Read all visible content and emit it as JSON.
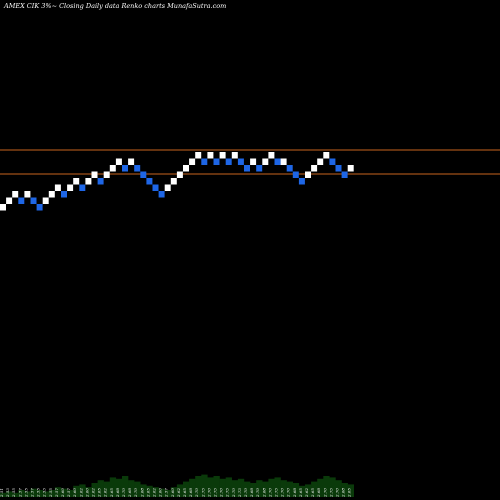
{
  "header": {
    "title": "AMEX  CIK 3%~  Closing Daily data  Renko  charts MunafaSutra.com"
  },
  "chart_data": {
    "type": "renko",
    "title": "AMEX  CIK 3%~  Closing Daily data  Renko  charts MunafaSutra.com",
    "xlabel": "",
    "ylabel": "",
    "brick_colors": {
      "up": "#ffffff",
      "down": "#1e66e6"
    },
    "line_color": "#c8641e",
    "volume_color": "#0a3a0a",
    "horizontal_levels": [
      2.93,
      2.87
    ],
    "bricks": [
      {
        "dir": "up",
        "level": 0
      },
      {
        "dir": "up",
        "level": 1
      },
      {
        "dir": "up",
        "level": 2
      },
      {
        "dir": "down",
        "level": 1
      },
      {
        "dir": "up",
        "level": 2
      },
      {
        "dir": "down",
        "level": 1
      },
      {
        "dir": "down",
        "level": 0
      },
      {
        "dir": "up",
        "level": 1
      },
      {
        "dir": "up",
        "level": 2
      },
      {
        "dir": "up",
        "level": 3
      },
      {
        "dir": "down",
        "level": 2
      },
      {
        "dir": "up",
        "level": 3
      },
      {
        "dir": "up",
        "level": 4
      },
      {
        "dir": "down",
        "level": 3
      },
      {
        "dir": "up",
        "level": 4
      },
      {
        "dir": "up",
        "level": 5
      },
      {
        "dir": "down",
        "level": 4
      },
      {
        "dir": "up",
        "level": 5
      },
      {
        "dir": "up",
        "level": 6
      },
      {
        "dir": "up",
        "level": 7
      },
      {
        "dir": "down",
        "level": 6
      },
      {
        "dir": "up",
        "level": 7
      },
      {
        "dir": "down",
        "level": 6
      },
      {
        "dir": "down",
        "level": 5
      },
      {
        "dir": "down",
        "level": 4
      },
      {
        "dir": "down",
        "level": 3
      },
      {
        "dir": "down",
        "level": 2
      },
      {
        "dir": "up",
        "level": 3
      },
      {
        "dir": "up",
        "level": 4
      },
      {
        "dir": "up",
        "level": 5
      },
      {
        "dir": "up",
        "level": 6
      },
      {
        "dir": "up",
        "level": 7
      },
      {
        "dir": "up",
        "level": 8
      },
      {
        "dir": "down",
        "level": 7
      },
      {
        "dir": "up",
        "level": 8
      },
      {
        "dir": "down",
        "level": 7
      },
      {
        "dir": "up",
        "level": 8
      },
      {
        "dir": "down",
        "level": 7
      },
      {
        "dir": "up",
        "level": 8
      },
      {
        "dir": "down",
        "level": 7
      },
      {
        "dir": "down",
        "level": 6
      },
      {
        "dir": "up",
        "level": 7
      },
      {
        "dir": "down",
        "level": 6
      },
      {
        "dir": "up",
        "level": 7
      },
      {
        "dir": "up",
        "level": 8
      },
      {
        "dir": "down",
        "level": 7
      },
      {
        "dir": "up",
        "level": 7
      },
      {
        "dir": "down",
        "level": 6
      },
      {
        "dir": "down",
        "level": 5
      },
      {
        "dir": "down",
        "level": 4
      },
      {
        "dir": "up",
        "level": 5
      },
      {
        "dir": "up",
        "level": 6
      },
      {
        "dir": "up",
        "level": 7
      },
      {
        "dir": "up",
        "level": 8
      },
      {
        "dir": "down",
        "level": 7
      },
      {
        "dir": "down",
        "level": 6
      },
      {
        "dir": "down",
        "level": 5
      },
      {
        "dir": "up",
        "level": 6
      }
    ],
    "brick_labels": [
      "2.51",
      "2.53",
      "2.55",
      "2.57",
      "2.55",
      "2.57",
      "2.55",
      "2.53",
      "2.55",
      "2.57",
      "2.60",
      "2.57",
      "2.60",
      "2.62",
      "2.60",
      "2.62",
      "2.65",
      "2.62",
      "2.65",
      "2.68",
      "2.70",
      "2.68",
      "2.70",
      "2.68",
      "2.65",
      "2.62",
      "2.60",
      "2.57",
      "2.60",
      "2.62",
      "2.65",
      "2.68",
      "2.70",
      "2.73",
      "2.70",
      "2.73",
      "2.70",
      "2.73",
      "2.70",
      "2.73",
      "2.70",
      "2.68",
      "2.70",
      "2.68",
      "2.70",
      "2.73",
      "2.70",
      "2.70",
      "2.68",
      "2.65",
      "2.62",
      "2.65",
      "2.68",
      "2.70",
      "2.73",
      "2.70",
      "2.68",
      "2.65"
    ],
    "volumes": [
      3,
      4,
      3,
      5,
      4,
      6,
      5,
      4,
      5,
      7,
      6,
      5,
      8,
      9,
      7,
      10,
      12,
      11,
      14,
      13,
      15,
      12,
      11,
      9,
      8,
      7,
      6,
      5,
      7,
      9,
      11,
      13,
      15,
      16,
      14,
      15,
      13,
      14,
      12,
      13,
      11,
      10,
      12,
      11,
      13,
      14,
      12,
      11,
      10,
      8,
      9,
      11,
      13,
      15,
      14,
      12,
      10,
      9
    ]
  }
}
